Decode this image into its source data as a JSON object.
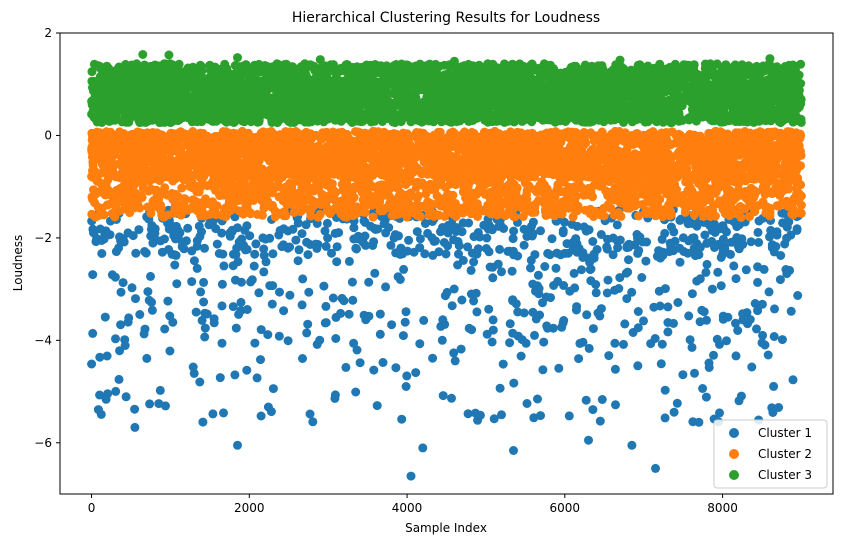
{
  "chart_data": {
    "type": "scatter",
    "title": "Hierarchical Clustering Results for Loudness",
    "xlabel": "Sample Index",
    "ylabel": "Loudness",
    "xlim": [
      -400,
      9400
    ],
    "ylim": [
      -7.0,
      2.0
    ],
    "xticks": [
      0,
      2000,
      4000,
      6000,
      8000
    ],
    "yticks": [
      2,
      0,
      -2,
      -4,
      -6
    ],
    "ytick_labels": [
      "2",
      "0",
      "−2",
      "−4",
      "−6"
    ],
    "grid": false,
    "legend_position": "lower-right",
    "n_samples": 9000,
    "series": [
      {
        "name": "Cluster 1",
        "color": "#1f77b4",
        "y_range": [
          -6.7,
          -1.45
        ],
        "approx_count": 900,
        "notable_points": [
          {
            "x": 4050,
            "y": -6.65
          },
          {
            "x": 7150,
            "y": -6.5
          },
          {
            "x": 5350,
            "y": -6.15
          },
          {
            "x": 4200,
            "y": -6.1
          },
          {
            "x": 1850,
            "y": -6.05
          },
          {
            "x": 6850,
            "y": -6.05
          },
          {
            "x": 6300,
            "y": -5.95
          },
          {
            "x": 550,
            "y": -5.7
          },
          {
            "x": 7700,
            "y": -5.6
          }
        ]
      },
      {
        "name": "Cluster 2",
        "color": "#ff7f0e",
        "y_range": [
          -1.6,
          0.08
        ],
        "approx_count": 4000
      },
      {
        "name": "Cluster 3",
        "color": "#2ca02c",
        "y_range": [
          0.25,
          1.6
        ],
        "approx_count": 4000,
        "notable_points": [
          {
            "x": 650,
            "y": 1.58
          },
          {
            "x": 980,
            "y": 1.57
          },
          {
            "x": 1850,
            "y": 1.52
          },
          {
            "x": 8600,
            "y": 1.5
          },
          {
            "x": 2900,
            "y": 1.48
          },
          {
            "x": 6700,
            "y": 1.47
          },
          {
            "x": 4600,
            "y": 1.45
          }
        ]
      }
    ]
  }
}
